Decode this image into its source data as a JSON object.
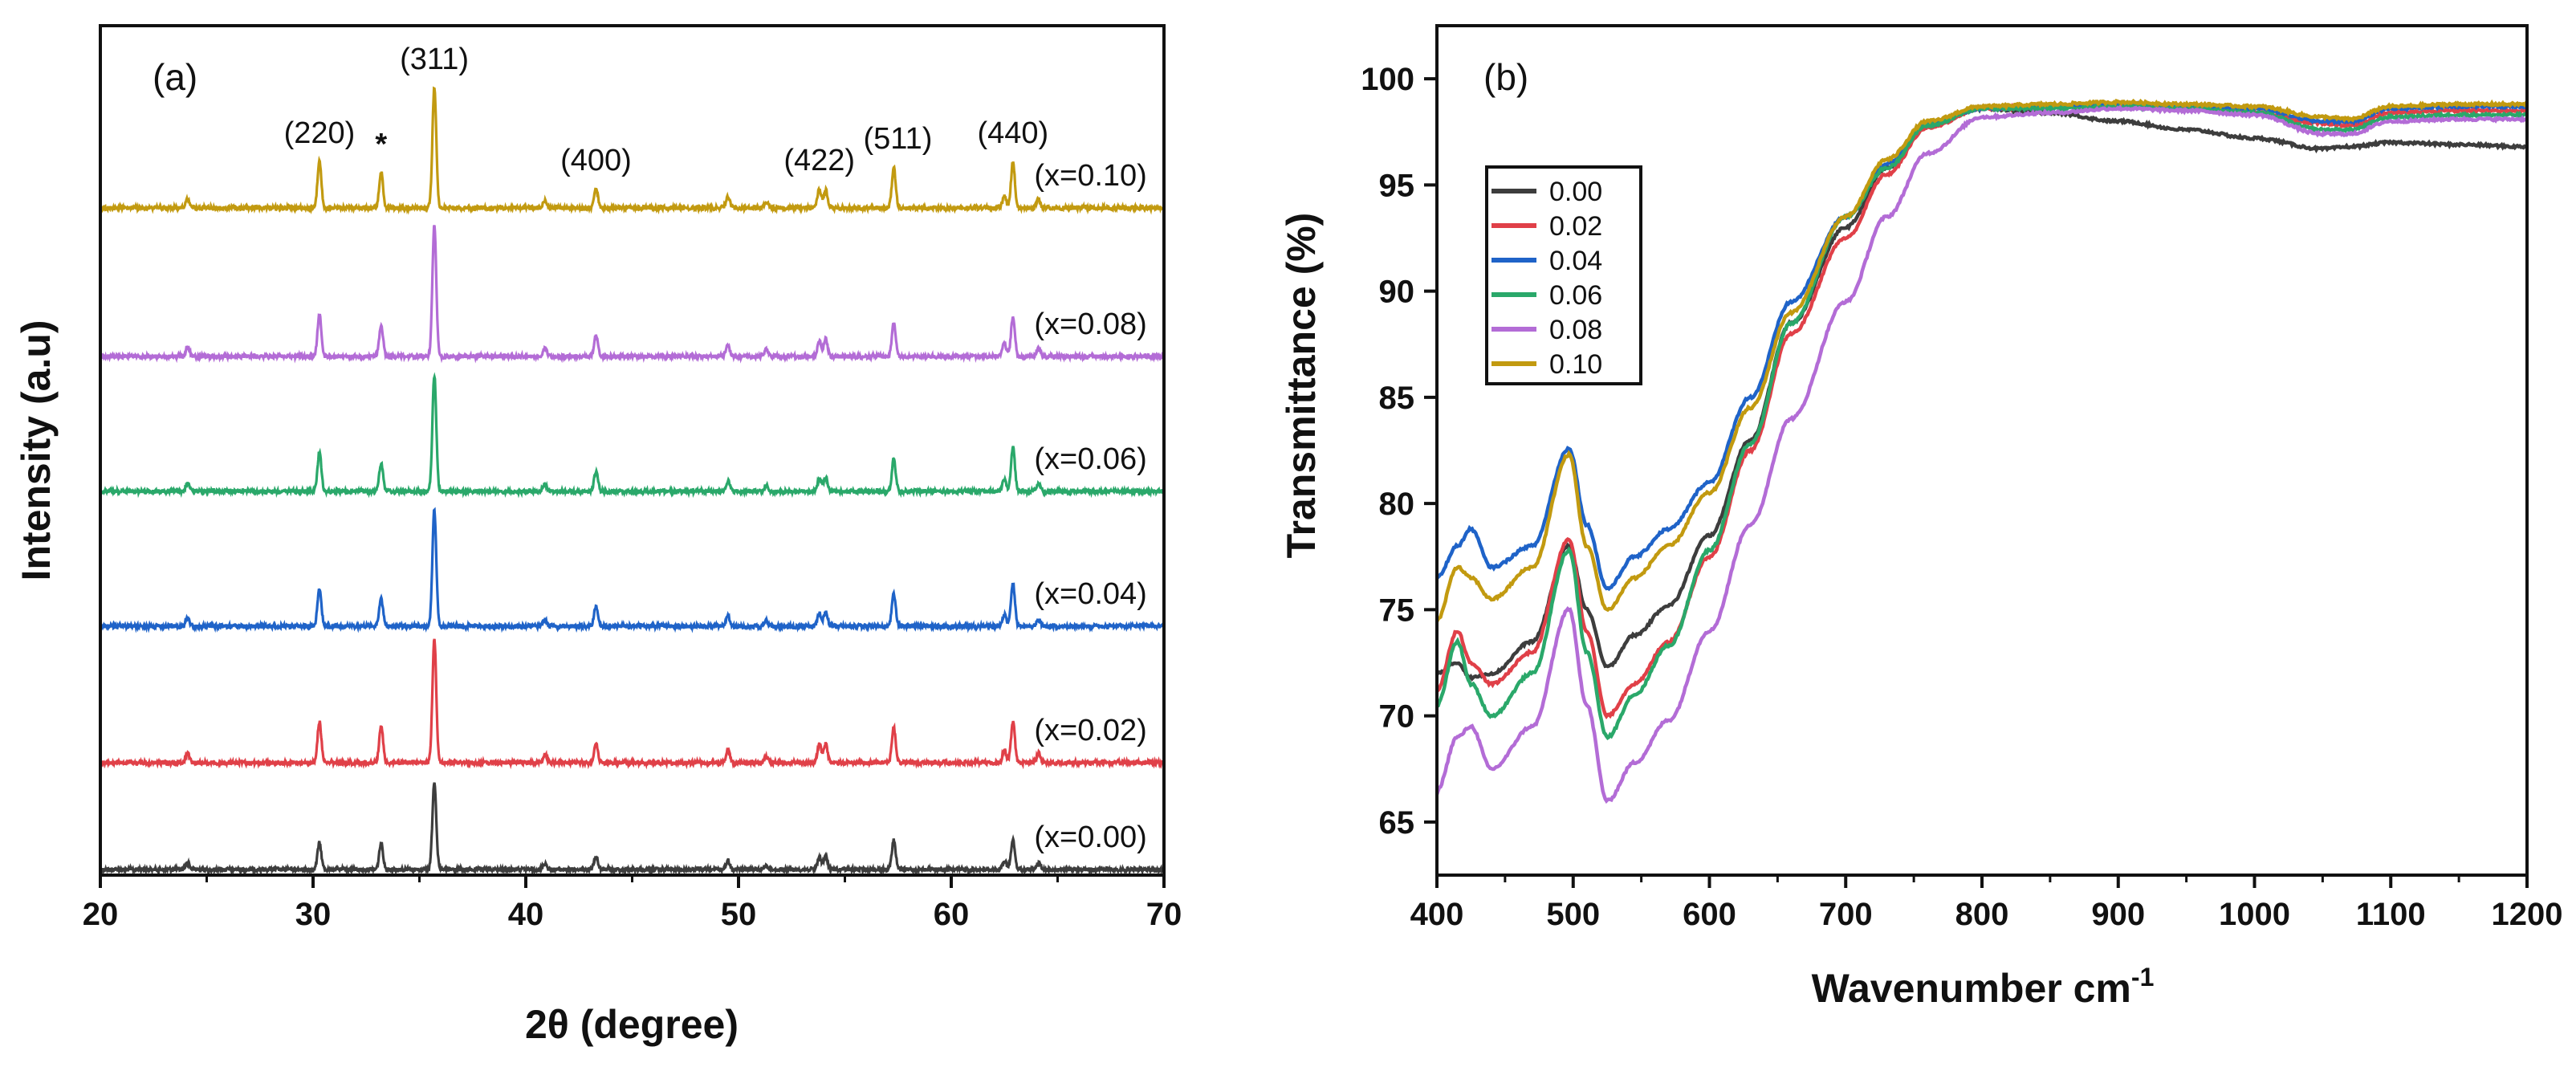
{
  "chart_data": [
    {
      "type": "line",
      "panel_label": "(a)",
      "xlabel": "2θ (degree)",
      "ylabel": "Intensity (a.u)",
      "xlim": [
        20,
        70
      ],
      "xticks": [
        20,
        30,
        40,
        50,
        60,
        70
      ],
      "y_ticks_shown": false,
      "grid": false,
      "offset_stacked": true,
      "peak_positions": [
        24.1,
        30.3,
        33.2,
        35.7,
        40.9,
        43.3,
        49.5,
        51.3,
        53.8,
        54.1,
        57.3,
        62.5,
        62.9,
        64.1
      ],
      "annotations": [
        {
          "text": "(220)",
          "x": 30.3
        },
        {
          "text": "*",
          "x": 33.2
        },
        {
          "text": "(311)",
          "x": 35.7
        },
        {
          "text": "(400)",
          "x": 43.3
        },
        {
          "text": "(422)",
          "x": 53.8
        },
        {
          "text": "(511)",
          "x": 57.3
        },
        {
          "text": "(440)",
          "x": 62.9
        }
      ],
      "series": [
        {
          "name": "(x=0.00)",
          "color": "#3d3d3d",
          "peak_heights": [
            0.08,
            0.3,
            0.3,
            1.0,
            0.07,
            0.15,
            0.1,
            0.05,
            0.14,
            0.15,
            0.33,
            0.1,
            0.33,
            0.07
          ]
        },
        {
          "name": "(x=0.02)",
          "color": "#e04048",
          "peak_heights": [
            0.08,
            0.33,
            0.3,
            1.0,
            0.07,
            0.15,
            0.1,
            0.05,
            0.15,
            0.15,
            0.28,
            0.1,
            0.33,
            0.08
          ]
        },
        {
          "name": "(x=0.04)",
          "color": "#1f63c8",
          "peak_heights": [
            0.07,
            0.33,
            0.24,
            1.0,
            0.06,
            0.17,
            0.09,
            0.05,
            0.11,
            0.12,
            0.28,
            0.1,
            0.37,
            0.06
          ]
        },
        {
          "name": "(x=0.06)",
          "color": "#2aa86a",
          "peak_heights": [
            0.07,
            0.34,
            0.24,
            1.0,
            0.06,
            0.17,
            0.09,
            0.05,
            0.11,
            0.12,
            0.28,
            0.1,
            0.38,
            0.06
          ]
        },
        {
          "name": "(x=0.08)",
          "color": "#b36cd6",
          "peak_heights": [
            0.07,
            0.32,
            0.24,
            1.0,
            0.06,
            0.16,
            0.08,
            0.05,
            0.12,
            0.13,
            0.25,
            0.1,
            0.3,
            0.06
          ]
        },
        {
          "name": "(x=0.10)",
          "color": "#c29a10",
          "peak_heights": [
            0.07,
            0.38,
            0.3,
            1.0,
            0.06,
            0.16,
            0.1,
            0.05,
            0.16,
            0.15,
            0.33,
            0.1,
            0.38,
            0.07
          ]
        }
      ]
    },
    {
      "type": "line",
      "panel_label": "(b)",
      "xlabel": "Wavenumber cm⁻¹",
      "ylabel": "Transmittance (%)",
      "xlim": [
        400,
        1200
      ],
      "ylim": [
        62.5,
        102.5
      ],
      "xticks": [
        400,
        500,
        600,
        700,
        800,
        900,
        1000,
        1100,
        1200
      ],
      "yticks": [
        65,
        70,
        75,
        80,
        85,
        90,
        95,
        100
      ],
      "grid": false,
      "legend_position": "top-left",
      "series": [
        {
          "name": "0.00",
          "color": "#3d3d3d",
          "x": [
            400,
            415,
            425,
            440,
            470,
            497,
            510,
            525,
            545,
            570,
            600,
            630,
            660,
            700,
            730,
            760,
            800,
            850,
            900,
            950,
            1000,
            1050,
            1070,
            1100,
            1150,
            1200
          ],
          "y": [
            72.0,
            72.5,
            71.8,
            72.0,
            73.5,
            78.0,
            75.0,
            72.3,
            73.8,
            75.2,
            78.5,
            83.0,
            88.5,
            93.0,
            95.8,
            97.8,
            98.6,
            98.4,
            98.0,
            97.6,
            97.2,
            96.7,
            96.8,
            97.0,
            96.9,
            96.8
          ]
        },
        {
          "name": "0.02",
          "color": "#e04048",
          "x": [
            400,
            415,
            425,
            440,
            470,
            497,
            510,
            525,
            545,
            570,
            600,
            630,
            660,
            700,
            730,
            760,
            800,
            850,
            900,
            950,
            1000,
            1050,
            1070,
            1100,
            1150,
            1200
          ],
          "y": [
            71.2,
            74.0,
            72.5,
            71.5,
            73.0,
            78.3,
            74.0,
            70.0,
            71.5,
            73.5,
            77.5,
            82.5,
            88.0,
            92.5,
            95.5,
            97.7,
            98.6,
            98.7,
            98.8,
            98.6,
            98.4,
            97.9,
            97.8,
            98.4,
            98.5,
            98.5
          ]
        },
        {
          "name": "0.04",
          "color": "#1f63c8",
          "x": [
            400,
            415,
            425,
            440,
            470,
            497,
            510,
            525,
            545,
            570,
            600,
            630,
            660,
            700,
            730,
            760,
            800,
            850,
            900,
            950,
            1000,
            1050,
            1070,
            1100,
            1150,
            1200
          ],
          "y": [
            76.5,
            78.0,
            78.8,
            77.0,
            78.0,
            82.6,
            79.0,
            76.0,
            77.5,
            78.8,
            81.0,
            85.0,
            89.5,
            93.5,
            96.0,
            97.9,
            98.6,
            98.7,
            98.8,
            98.7,
            98.6,
            98.0,
            98.0,
            98.6,
            98.7,
            98.7
          ]
        },
        {
          "name": "0.06",
          "color": "#2aa86a",
          "x": [
            400,
            415,
            425,
            440,
            470,
            497,
            510,
            525,
            545,
            570,
            600,
            630,
            660,
            700,
            730,
            760,
            800,
            850,
            900,
            950,
            1000,
            1050,
            1070,
            1100,
            1150,
            1200
          ],
          "y": [
            70.5,
            73.5,
            71.5,
            70.0,
            72.0,
            77.8,
            73.0,
            69.0,
            71.0,
            73.3,
            77.8,
            82.8,
            88.5,
            93.5,
            95.8,
            97.8,
            98.6,
            98.6,
            98.7,
            98.6,
            98.4,
            97.6,
            97.6,
            98.2,
            98.3,
            98.3
          ]
        },
        {
          "name": "0.08",
          "color": "#b36cd6",
          "x": [
            400,
            415,
            425,
            440,
            470,
            497,
            510,
            525,
            545,
            570,
            600,
            630,
            660,
            700,
            730,
            760,
            800,
            850,
            900,
            950,
            1000,
            1050,
            1070,
            1100,
            1150,
            1200
          ],
          "y": [
            66.5,
            69.0,
            69.5,
            67.5,
            69.5,
            75.0,
            70.5,
            66.0,
            67.8,
            69.8,
            74.0,
            79.0,
            84.0,
            89.5,
            93.5,
            96.5,
            98.2,
            98.4,
            98.6,
            98.5,
            98.3,
            97.4,
            97.4,
            98.0,
            98.1,
            98.1
          ]
        },
        {
          "name": "0.10",
          "color": "#c29a10",
          "x": [
            400,
            415,
            425,
            440,
            470,
            497,
            510,
            525,
            545,
            570,
            600,
            630,
            660,
            700,
            730,
            760,
            800,
            850,
            900,
            950,
            1000,
            1050,
            1070,
            1100,
            1150,
            1200
          ],
          "y": [
            74.5,
            77.0,
            76.5,
            75.5,
            77.0,
            82.3,
            78.0,
            75.0,
            76.5,
            78.0,
            80.5,
            84.5,
            89.0,
            93.5,
            96.2,
            98.0,
            98.7,
            98.8,
            98.9,
            98.8,
            98.7,
            98.2,
            98.1,
            98.7,
            98.8,
            98.8
          ]
        }
      ]
    }
  ]
}
